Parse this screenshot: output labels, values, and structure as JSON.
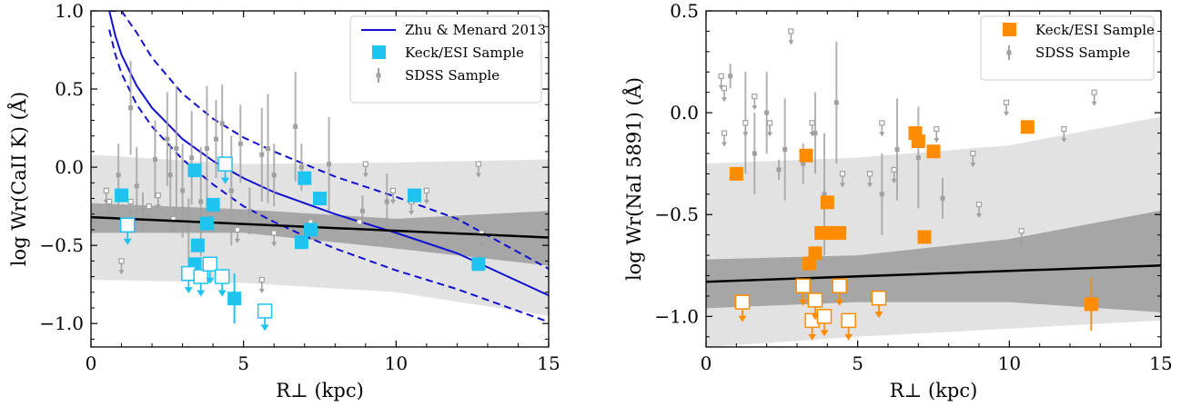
{
  "chart_data": [
    {
      "type": "scatter",
      "xlabel": "R⊥ (kpc)",
      "ylabel": "log Wr(CaII K) (Å)",
      "xlim": [
        0,
        15
      ],
      "ylim": [
        -1.15,
        1.0
      ],
      "xticks": [
        "0",
        "5",
        "10",
        "15"
      ],
      "yticks": [
        "1.0",
        "0.5",
        "0.0",
        "−0.5",
        "−1.0"
      ],
      "legend_position": "top-right",
      "legend": [
        "Zhu & Menard 2013",
        "Keck/ESI Sample",
        "SDSS Sample"
      ],
      "colors": {
        "model": "#1010d0",
        "keck": "#1ec3f0",
        "sdss": "#a0a0a0",
        "fit": "#000000",
        "band_outer": "#e2e2e2",
        "band_inner": "#a6a6a6"
      },
      "fit": {
        "x": [
          0,
          15
        ],
        "y": [
          -0.32,
          -0.45
        ]
      },
      "band_outer": {
        "x": [
          0,
          5,
          10,
          15
        ],
        "upper": [
          0.08,
          0.02,
          0.03,
          0.05
        ],
        "lower": [
          -0.72,
          -0.74,
          -0.8,
          -0.95
        ]
      },
      "band_inner": {
        "x": [
          0,
          5,
          10,
          15
        ],
        "upper": [
          -0.23,
          -0.27,
          -0.33,
          -0.28
        ],
        "lower": [
          -0.42,
          -0.42,
          -0.52,
          -0.63
        ]
      },
      "model": {
        "x": [
          0.6,
          0.8,
          1.0,
          1.5,
          2.0,
          3.0,
          4.0,
          5.0,
          6.0,
          7.0,
          8.0,
          10.0,
          12.0,
          15.0
        ],
        "y": [
          1.0,
          0.84,
          0.72,
          0.52,
          0.38,
          0.18,
          0.04,
          -0.07,
          -0.16,
          -0.23,
          -0.3,
          -0.42,
          -0.55,
          -0.82
        ],
        "upper": [
          1.0,
          1.0,
          1.0,
          0.86,
          0.7,
          0.47,
          0.31,
          0.19,
          0.1,
          0.02,
          -0.06,
          -0.19,
          -0.33,
          -0.65
        ],
        "lower": [
          0.88,
          0.72,
          0.6,
          0.4,
          0.26,
          0.05,
          -0.11,
          -0.25,
          -0.35,
          -0.44,
          -0.52,
          -0.66,
          -0.78,
          -0.99
        ]
      },
      "keck_detections": [
        {
          "x": 1.0,
          "y": -0.18
        },
        {
          "x": 3.4,
          "y": -0.02
        },
        {
          "x": 3.4,
          "y": -0.62
        },
        {
          "x": 3.5,
          "y": -0.5
        },
        {
          "x": 3.8,
          "y": -0.36
        },
        {
          "x": 4.0,
          "y": -0.24
        },
        {
          "x": 4.7,
          "y": -0.84,
          "err": 0.16
        },
        {
          "x": 6.9,
          "y": -0.48
        },
        {
          "x": 7.0,
          "y": -0.07
        },
        {
          "x": 7.2,
          "y": -0.4
        },
        {
          "x": 7.5,
          "y": -0.2
        },
        {
          "x": 10.6,
          "y": -0.18
        },
        {
          "x": 12.7,
          "y": -0.62
        }
      ],
      "keck_limits": [
        {
          "x": 1.2,
          "y": -0.37
        },
        {
          "x": 3.2,
          "y": -0.68
        },
        {
          "x": 3.6,
          "y": -0.7
        },
        {
          "x": 3.9,
          "y": -0.62
        },
        {
          "x": 4.3,
          "y": -0.7
        },
        {
          "x": 4.4,
          "y": 0.02
        },
        {
          "x": 5.7,
          "y": -0.92
        }
      ],
      "sdss_detections": [
        {
          "x": 0.9,
          "y": -0.05,
          "err": 0.2
        },
        {
          "x": 1.3,
          "y": 0.38,
          "err": 0.3
        },
        {
          "x": 1.5,
          "y": -0.12,
          "err": 0.25
        },
        {
          "x": 1.7,
          "y": -0.28,
          "err": 0.12
        },
        {
          "x": 2.1,
          "y": 0.05,
          "err": 0.25
        },
        {
          "x": 2.5,
          "y": 0.18,
          "err": 0.3
        },
        {
          "x": 2.6,
          "y": -0.05,
          "err": 0.2
        },
        {
          "x": 2.8,
          "y": 0.12,
          "err": 0.4
        },
        {
          "x": 3.0,
          "y": -0.15,
          "err": 0.3
        },
        {
          "x": 3.2,
          "y": -0.4,
          "err": 0.2
        },
        {
          "x": 3.3,
          "y": 0.06,
          "err": 0.3
        },
        {
          "x": 3.6,
          "y": -0.22,
          "err": 0.35
        },
        {
          "x": 3.8,
          "y": 0.12,
          "err": 0.4
        },
        {
          "x": 4.1,
          "y": 0.18,
          "err": 0.25
        },
        {
          "x": 4.3,
          "y": 0.28,
          "err": 0.25
        },
        {
          "x": 4.6,
          "y": -0.15,
          "err": 0.35
        },
        {
          "x": 4.9,
          "y": 0.15,
          "err": 0.25
        },
        {
          "x": 5.2,
          "y": -0.28,
          "err": 0.15
        },
        {
          "x": 5.6,
          "y": 0.08,
          "err": 0.3
        },
        {
          "x": 5.8,
          "y": 0.12,
          "err": 0.35
        },
        {
          "x": 6.0,
          "y": -0.05,
          "err": 0.2
        },
        {
          "x": 6.7,
          "y": 0.26,
          "err": 0.35
        },
        {
          "x": 6.9,
          "y": 0.0,
          "err": 0.15
        },
        {
          "x": 7.8,
          "y": 0.02,
          "err": 0.3
        },
        {
          "x": 8.9,
          "y": -0.28,
          "err": 0.1
        },
        {
          "x": 9.7,
          "y": -0.22,
          "err": 0.18
        }
      ],
      "sdss_limits": [
        {
          "x": 0.5,
          "y": -0.15
        },
        {
          "x": 0.6,
          "y": -0.22
        },
        {
          "x": 1.0,
          "y": -0.6
        },
        {
          "x": 1.3,
          "y": -0.22
        },
        {
          "x": 1.9,
          "y": -0.25
        },
        {
          "x": 2.2,
          "y": -0.18
        },
        {
          "x": 2.7,
          "y": -0.33
        },
        {
          "x": 4.8,
          "y": -0.4
        },
        {
          "x": 5.6,
          "y": -0.72
        },
        {
          "x": 6.0,
          "y": -0.42
        },
        {
          "x": 7.2,
          "y": -0.35
        },
        {
          "x": 8.8,
          "y": -0.35
        },
        {
          "x": 9.0,
          "y": 0.02
        },
        {
          "x": 9.9,
          "y": -0.15
        },
        {
          "x": 10.5,
          "y": -0.22
        },
        {
          "x": 11.0,
          "y": -0.15
        },
        {
          "x": 12.7,
          "y": 0.02
        },
        {
          "x": 12.8,
          "y": -0.42
        }
      ]
    },
    {
      "type": "scatter",
      "xlabel": "R⊥ (kpc)",
      "ylabel": "log Wr(NaI 5891) (Å)",
      "xlim": [
        0,
        15
      ],
      "ylim": [
        -1.15,
        0.5
      ],
      "xticks": [
        "0",
        "5",
        "10",
        "15"
      ],
      "yticks": [
        "0.5",
        "0.0",
        "−0.5",
        "−1.0"
      ],
      "legend_position": "top-right",
      "legend": [
        "Keck/ESI Sample",
        "SDSS Sample"
      ],
      "colors": {
        "keck": "#ff8c00",
        "sdss": "#a0a0a0",
        "fit": "#000000",
        "band_outer": "#e2e2e2",
        "band_inner": "#a6a6a6"
      },
      "fit": {
        "x": [
          0,
          15
        ],
        "y": [
          -0.83,
          -0.75
        ]
      },
      "band_outer": {
        "x": [
          0,
          5,
          10,
          15
        ],
        "upper": [
          -0.25,
          -0.22,
          -0.16,
          -0.02
        ],
        "lower": [
          -1.15,
          -1.1,
          -1.06,
          -1.02
        ]
      },
      "band_inner": {
        "x": [
          0,
          5,
          10,
          15
        ],
        "upper": [
          -0.72,
          -0.7,
          -0.62,
          -0.48
        ],
        "lower": [
          -0.96,
          -0.93,
          -0.93,
          -0.98
        ]
      },
      "keck_detections": [
        {
          "x": 1.0,
          "y": -0.3
        },
        {
          "x": 3.3,
          "y": -0.21
        },
        {
          "x": 3.4,
          "y": -0.74
        },
        {
          "x": 3.6,
          "y": -0.69
        },
        {
          "x": 3.8,
          "y": -0.59
        },
        {
          "x": 4.0,
          "y": -0.44
        },
        {
          "x": 4.1,
          "y": -0.59
        },
        {
          "x": 4.4,
          "y": -0.59
        },
        {
          "x": 6.9,
          "y": -0.1
        },
        {
          "x": 7.0,
          "y": -0.14
        },
        {
          "x": 7.2,
          "y": -0.61
        },
        {
          "x": 7.5,
          "y": -0.19
        },
        {
          "x": 10.6,
          "y": -0.07
        },
        {
          "x": 12.7,
          "y": -0.94,
          "err": 0.13
        }
      ],
      "keck_limits": [
        {
          "x": 1.2,
          "y": -0.93
        },
        {
          "x": 3.2,
          "y": -0.85
        },
        {
          "x": 3.5,
          "y": -1.02
        },
        {
          "x": 3.6,
          "y": -0.92
        },
        {
          "x": 3.9,
          "y": -1.0
        },
        {
          "x": 4.4,
          "y": -0.85
        },
        {
          "x": 4.7,
          "y": -1.02
        },
        {
          "x": 5.7,
          "y": -0.91
        }
      ],
      "sdss_detections": [
        {
          "x": 0.8,
          "y": 0.18,
          "err": 0.06
        },
        {
          "x": 1.3,
          "y": -0.05,
          "err": 0.25
        },
        {
          "x": 1.6,
          "y": -0.2,
          "err": 0.2
        },
        {
          "x": 2.0,
          "y": 0.0,
          "err": 0.2
        },
        {
          "x": 2.4,
          "y": -0.28,
          "err": 0.05
        },
        {
          "x": 2.6,
          "y": -0.18,
          "err": 0.25
        },
        {
          "x": 3.2,
          "y": -0.25,
          "err": 0.1
        },
        {
          "x": 3.6,
          "y": -0.1,
          "err": 0.2
        },
        {
          "x": 3.9,
          "y": -0.4,
          "err": 0.3
        },
        {
          "x": 4.3,
          "y": 0.05,
          "err": 0.3
        },
        {
          "x": 5.8,
          "y": -0.4,
          "err": 0.2
        },
        {
          "x": 6.3,
          "y": -0.18,
          "err": 0.25
        },
        {
          "x": 7.0,
          "y": -0.22,
          "err": 0.25
        },
        {
          "x": 7.8,
          "y": -0.42,
          "err": 0.1
        }
      ],
      "sdss_limits": [
        {
          "x": 0.5,
          "y": 0.18
        },
        {
          "x": 0.6,
          "y": 0.12
        },
        {
          "x": 0.6,
          "y": -0.1
        },
        {
          "x": 1.3,
          "y": -0.05
        },
        {
          "x": 1.6,
          "y": 0.08
        },
        {
          "x": 2.1,
          "y": -0.05
        },
        {
          "x": 2.8,
          "y": 0.4
        },
        {
          "x": 3.5,
          "y": -0.05
        },
        {
          "x": 4.5,
          "y": -0.3
        },
        {
          "x": 5.4,
          "y": -0.3
        },
        {
          "x": 5.8,
          "y": -0.05
        },
        {
          "x": 6.2,
          "y": -0.28
        },
        {
          "x": 7.6,
          "y": -0.08
        },
        {
          "x": 8.8,
          "y": -0.2
        },
        {
          "x": 9.0,
          "y": -0.45
        },
        {
          "x": 9.9,
          "y": 0.05
        },
        {
          "x": 10.4,
          "y": -0.58
        },
        {
          "x": 11.8,
          "y": -0.08
        },
        {
          "x": 12.8,
          "y": 0.1
        }
      ]
    }
  ]
}
